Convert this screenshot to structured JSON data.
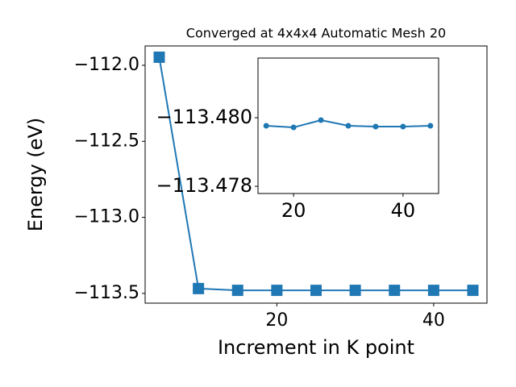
{
  "chart_data": [
    {
      "type": "line",
      "title": "Converged at 4x4x4 Automatic Mesh 20",
      "x_label": "Increment in K point",
      "y_label": "Energy (eV)",
      "x": [
        5,
        10,
        15,
        20,
        25,
        30,
        35,
        40,
        45
      ],
      "series": [
        {
          "color": "#1f77b4",
          "marker": "square",
          "values": [
            -111.947,
            -113.468,
            -113.479765,
            -113.479718,
            -113.479929,
            -113.479765,
            -113.479741,
            -113.479741,
            -113.479765
          ]
        }
      ],
      "xlim": [
        3.2,
        46.8
      ],
      "ylim": [
        -113.564,
        -111.873
      ],
      "xticks": [
        20,
        40
      ],
      "yticks": [
        {
          "value": -112.0,
          "label": "−112.0"
        },
        {
          "value": -112.5,
          "label": "−112.5"
        },
        {
          "value": -113.0,
          "label": "−113.0"
        },
        {
          "value": -113.5,
          "label": "−113.5"
        }
      ]
    },
    {
      "type": "line",
      "x": [
        15,
        20,
        25,
        30,
        35,
        40,
        45
      ],
      "series": [
        {
          "color": "#1f77b4",
          "marker": "circle",
          "values": [
            -113.479765,
            -113.479718,
            -113.479929,
            -113.479765,
            -113.479741,
            -113.479741,
            -113.479765
          ]
        }
      ],
      "xlim": [
        13.5,
        46.5
      ],
      "ylim": [
        -113.47779,
        -113.48174
      ],
      "xticks": [
        20,
        40
      ],
      "yticks": [
        {
          "value": -113.48,
          "label": "−113.480"
        },
        {
          "value": -113.478,
          "label": "−113.478"
        }
      ]
    }
  ]
}
